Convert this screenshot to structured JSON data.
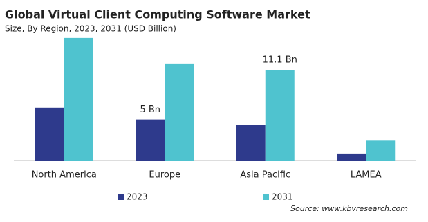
{
  "chart_data": {
    "type": "bar",
    "title": "Global Virtual Client Computing Software Market",
    "subtitle": "Size, By Region, 2023, 2031 (USD Billion)",
    "categories": [
      "North America",
      "Europe",
      "Asia Pacific",
      "LAMEA"
    ],
    "series": [
      {
        "name": "2023",
        "color": "#2e3a8c",
        "values": [
          6.5,
          5,
          4.3,
          0.85
        ],
        "value_labels": [
          null,
          "5 Bn",
          null,
          null
        ]
      },
      {
        "name": "2031",
        "color": "#4fc3cf",
        "values": [
          15,
          11.8,
          11.1,
          2.5
        ],
        "value_labels": [
          null,
          null,
          "11.1 Bn",
          null
        ]
      }
    ],
    "ylim": [
      0,
      16
    ],
    "source": "Source: www.kbvresearch.com"
  }
}
